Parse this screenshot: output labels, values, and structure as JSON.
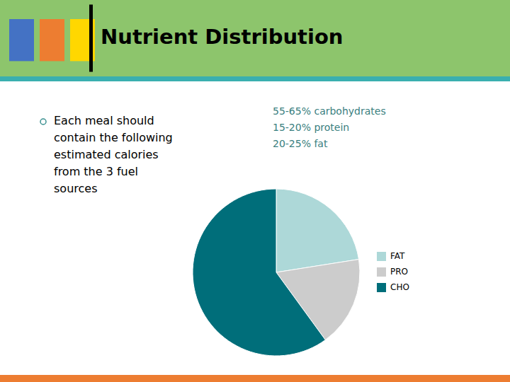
{
  "chart_data": {
    "type": "pie",
    "title": "Nutrient Distribution",
    "categories": [
      "FAT",
      "PRO",
      "CHO"
    ],
    "values": [
      22.5,
      17.5,
      60
    ],
    "colors": [
      "#ADD8D8",
      "#CCCCCC",
      "#006E7A"
    ],
    "legend": "right",
    "annotations": [
      "Each meal should\ncontain the following\nestimated calories\nfrom the 3 fuel\nsources",
      "55-65% carbohydrates\n15-20% protein\n20-25% fat"
    ]
  }
}
